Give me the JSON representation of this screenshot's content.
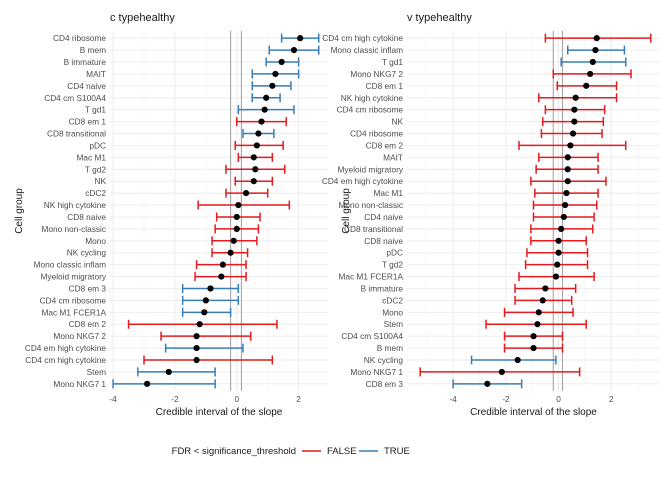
{
  "legend": {
    "title": "FDR < significance_threshold",
    "entries": [
      {
        "label": "FALSE",
        "color": "#e41a1c"
      },
      {
        "label": "TRUE",
        "color": "#377eb8"
      }
    ]
  },
  "chart_data": [
    {
      "type": "forest",
      "title": "c typehealthy",
      "xlabel": "Credible interval of the slope",
      "ylabel": "Cell group",
      "xlim": [
        -4.1,
        2.95
      ],
      "xticks": [
        -4,
        -2,
        0,
        2
      ],
      "ref_lines": [
        -0.2,
        0.15
      ],
      "grid": true,
      "legend_position": "bottom",
      "rows": [
        {
          "label": "CD4 ribosome",
          "est": 2.05,
          "lo": 1.45,
          "hi": 2.65,
          "sig": true
        },
        {
          "label": "B mem",
          "est": 1.85,
          "lo": 1.05,
          "hi": 2.65,
          "sig": true
        },
        {
          "label": "B immature",
          "est": 1.45,
          "lo": 0.95,
          "hi": 2.0,
          "sig": true
        },
        {
          "label": "MAIT",
          "est": 1.25,
          "lo": 0.5,
          "hi": 2.0,
          "sig": true
        },
        {
          "label": "CD4 naive",
          "est": 1.15,
          "lo": 0.5,
          "hi": 1.75,
          "sig": true
        },
        {
          "label": "CD4 cm S100A4",
          "est": 0.95,
          "lo": 0.5,
          "hi": 1.4,
          "sig": true
        },
        {
          "label": "T gd1",
          "est": 0.9,
          "lo": 0.05,
          "hi": 1.85,
          "sig": true
        },
        {
          "label": "CD8 em 1",
          "est": 0.8,
          "lo": 0.0,
          "hi": 1.6,
          "sig": false
        },
        {
          "label": "CD8 transitional",
          "est": 0.7,
          "lo": 0.2,
          "hi": 1.2,
          "sig": true
        },
        {
          "label": "pDC",
          "est": 0.65,
          "lo": -0.05,
          "hi": 1.5,
          "sig": false
        },
        {
          "label": "Mac M1",
          "est": 0.55,
          "lo": 0.05,
          "hi": 1.15,
          "sig": false
        },
        {
          "label": "T gd2",
          "est": 0.6,
          "lo": -0.35,
          "hi": 1.55,
          "sig": false
        },
        {
          "label": "NK",
          "est": 0.55,
          "lo": -0.05,
          "hi": 1.15,
          "sig": false
        },
        {
          "label": "cDC2",
          "est": 0.3,
          "lo": -0.35,
          "hi": 1.0,
          "sig": false
        },
        {
          "label": "NK high cytokine",
          "est": 0.05,
          "lo": -1.25,
          "hi": 1.7,
          "sig": false
        },
        {
          "label": "CD8 naive",
          "est": 0.0,
          "lo": -0.65,
          "hi": 0.75,
          "sig": false
        },
        {
          "label": "Mono non-classic",
          "est": 0.0,
          "lo": -0.7,
          "hi": 0.7,
          "sig": false
        },
        {
          "label": "Mono",
          "est": -0.1,
          "lo": -0.8,
          "hi": 0.65,
          "sig": false
        },
        {
          "label": "NK cycling",
          "est": -0.2,
          "lo": -0.8,
          "hi": 0.35,
          "sig": false
        },
        {
          "label": "Mono classic inflam",
          "est": -0.45,
          "lo": -1.3,
          "hi": 0.3,
          "sig": false
        },
        {
          "label": "Myeloid migratory",
          "est": -0.5,
          "lo": -1.35,
          "hi": 0.3,
          "sig": false
        },
        {
          "label": "CD8 em 3",
          "est": -0.85,
          "lo": -1.75,
          "hi": 0.05,
          "sig": true
        },
        {
          "label": "CD4 cm ribosome",
          "est": -1.0,
          "lo": -1.75,
          "hi": 0.05,
          "sig": true
        },
        {
          "label": "Mac M1 FCER1A",
          "est": -1.05,
          "lo": -1.75,
          "hi": -0.2,
          "sig": true
        },
        {
          "label": "CD8 em 2",
          "est": -1.2,
          "lo": -3.5,
          "hi": 1.3,
          "sig": false
        },
        {
          "label": "Mono NKG7 2",
          "est": -1.3,
          "lo": -2.45,
          "hi": 0.45,
          "sig": false
        },
        {
          "label": "CD4 em high cytokine",
          "est": -1.3,
          "lo": -2.3,
          "hi": 0.2,
          "sig": true
        },
        {
          "label": "CD4 cm high cytokine",
          "est": -1.3,
          "lo": -3.0,
          "hi": 1.15,
          "sig": false
        },
        {
          "label": "Stem",
          "est": -2.2,
          "lo": -3.2,
          "hi": -0.7,
          "sig": true
        },
        {
          "label": "Mono NKG7 1",
          "est": -2.9,
          "lo": -4.0,
          "hi": -0.7,
          "sig": true
        }
      ]
    },
    {
      "type": "forest",
      "title": "v typehealthy",
      "xlabel": "Credible interval of the slope",
      "ylabel": "Cell group",
      "xlim": [
        -5.75,
        3.85
      ],
      "xticks": [
        -4,
        -2,
        0,
        2
      ],
      "ref_lines": [
        -0.2,
        0.15
      ],
      "grid": true,
      "legend_position": "bottom",
      "rows": [
        {
          "label": "CD4 cm high cytokine",
          "est": 1.45,
          "lo": -0.5,
          "hi": 3.5,
          "sig": false
        },
        {
          "label": "Mono classic inflam",
          "est": 1.4,
          "lo": 0.35,
          "hi": 2.5,
          "sig": true
        },
        {
          "label": "T gd1",
          "est": 1.3,
          "lo": 0.1,
          "hi": 2.55,
          "sig": true
        },
        {
          "label": "Mono NKG7 2",
          "est": 1.2,
          "lo": -0.2,
          "hi": 2.75,
          "sig": false
        },
        {
          "label": "CD8 em 1",
          "est": 1.05,
          "lo": -0.05,
          "hi": 2.2,
          "sig": false
        },
        {
          "label": "NK high cytokine",
          "est": 0.65,
          "lo": -0.75,
          "hi": 2.2,
          "sig": false
        },
        {
          "label": "CD4 cm ribosome",
          "est": 0.6,
          "lo": -0.5,
          "hi": 1.75,
          "sig": false
        },
        {
          "label": "NK",
          "est": 0.6,
          "lo": -0.6,
          "hi": 1.7,
          "sig": false
        },
        {
          "label": "CD4 ribosome",
          "est": 0.55,
          "lo": -0.65,
          "hi": 1.65,
          "sig": false
        },
        {
          "label": "CD8 em 2",
          "est": 0.45,
          "lo": -1.5,
          "hi": 2.55,
          "sig": false
        },
        {
          "label": "MAIT",
          "est": 0.35,
          "lo": -0.75,
          "hi": 1.5,
          "sig": false
        },
        {
          "label": "Myeloid migratory",
          "est": 0.35,
          "lo": -0.85,
          "hi": 1.5,
          "sig": false
        },
        {
          "label": "CD4 em high cytokine",
          "est": 0.35,
          "lo": -1.05,
          "hi": 1.8,
          "sig": false
        },
        {
          "label": "Mac M1",
          "est": 0.3,
          "lo": -0.9,
          "hi": 1.5,
          "sig": false
        },
        {
          "label": "Mono non-classic",
          "est": 0.25,
          "lo": -0.95,
          "hi": 1.45,
          "sig": false
        },
        {
          "label": "CD4 naive",
          "est": 0.2,
          "lo": -0.95,
          "hi": 1.35,
          "sig": false
        },
        {
          "label": "CD8 transitional",
          "est": 0.1,
          "lo": -1.05,
          "hi": 1.3,
          "sig": false
        },
        {
          "label": "CD8 naive",
          "est": 0.0,
          "lo": -1.05,
          "hi": 1.05,
          "sig": false
        },
        {
          "label": "pDC",
          "est": 0.0,
          "lo": -1.2,
          "hi": 1.1,
          "sig": false
        },
        {
          "label": "T gd2",
          "est": -0.05,
          "lo": -1.25,
          "hi": 1.1,
          "sig": false
        },
        {
          "label": "Mac M1 FCER1A",
          "est": -0.1,
          "lo": -1.5,
          "hi": 1.35,
          "sig": false
        },
        {
          "label": "B immature",
          "est": -0.5,
          "lo": -1.65,
          "hi": 0.65,
          "sig": false
        },
        {
          "label": "cDC2",
          "est": -0.6,
          "lo": -1.65,
          "hi": 0.5,
          "sig": false
        },
        {
          "label": "Mono",
          "est": -0.75,
          "lo": -2.05,
          "hi": 0.55,
          "sig": false
        },
        {
          "label": "Stem",
          "est": -0.8,
          "lo": -2.75,
          "hi": 1.05,
          "sig": false
        },
        {
          "label": "CD4 cm S100A4",
          "est": -0.95,
          "lo": -2.05,
          "hi": 0.15,
          "sig": false
        },
        {
          "label": "B mem",
          "est": -0.95,
          "lo": -2.05,
          "hi": 0.15,
          "sig": false
        },
        {
          "label": "NK cycling",
          "est": -1.55,
          "lo": -3.3,
          "hi": -0.1,
          "sig": true
        },
        {
          "label": "Mono NKG7 1",
          "est": -2.15,
          "lo": -5.25,
          "hi": 0.8,
          "sig": false
        },
        {
          "label": "CD8 em 3",
          "est": -2.7,
          "lo": -4.0,
          "hi": -1.4,
          "sig": true
        }
      ]
    }
  ]
}
